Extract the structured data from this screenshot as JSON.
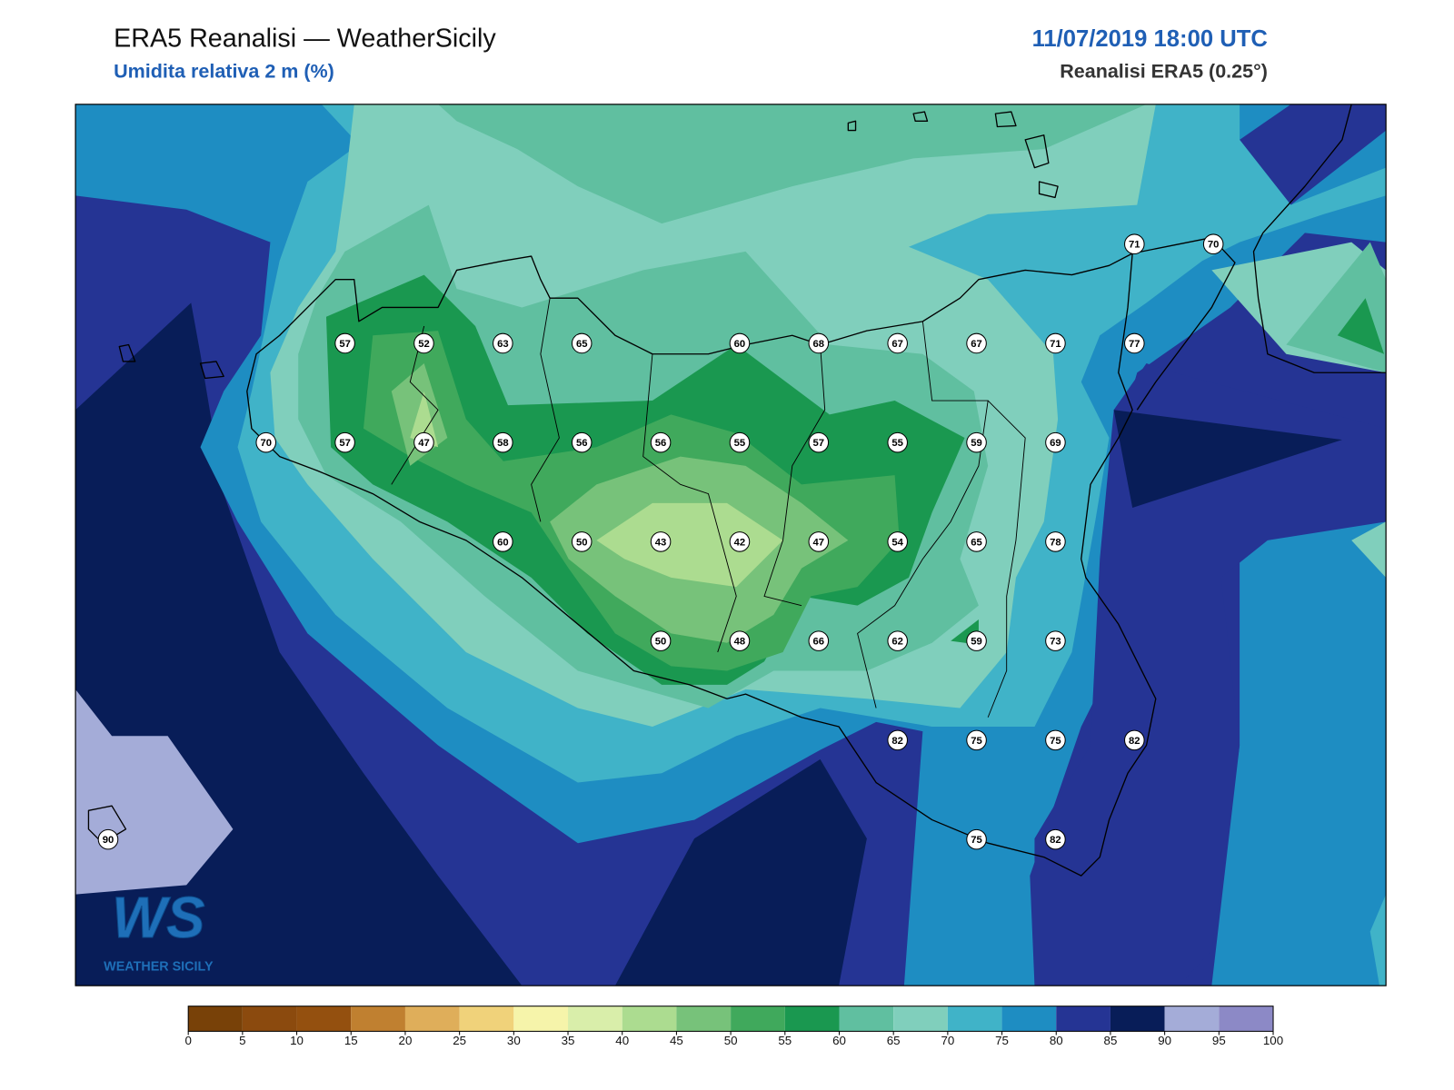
{
  "header": {
    "title": "ERA5 Reanalisi — WeatherSicily",
    "subtitle": "Umidita relativa 2 m (%)",
    "datetime": "11/07/2019 18:00 UTC",
    "source": "Reanalisi ERA5 (0.25°)"
  },
  "logo": {
    "mark": "WS",
    "name": "WEATHER SICILY"
  },
  "grid": [
    [
      null,
      null,
      null,
      null,
      null,
      null,
      null,
      null,
      null,
      null,
      null,
      null,
      null,
      71,
      70
    ],
    [
      null,
      null,
      null,
      57,
      52,
      63,
      65,
      null,
      60,
      68,
      67,
      67,
      71,
      77,
      null
    ],
    [
      null,
      null,
      70,
      57,
      47,
      58,
      56,
      56,
      55,
      57,
      55,
      59,
      69,
      null,
      null
    ],
    [
      null,
      null,
      null,
      null,
      null,
      60,
      50,
      43,
      42,
      47,
      54,
      65,
      78,
      null,
      null
    ],
    [
      null,
      null,
      null,
      null,
      null,
      null,
      null,
      50,
      48,
      66,
      62,
      59,
      73,
      null,
      null
    ],
    [
      null,
      null,
      null,
      null,
      null,
      null,
      null,
      null,
      null,
      null,
      82,
      75,
      75,
      82,
      null
    ],
    [
      90,
      null,
      null,
      null,
      null,
      null,
      null,
      null,
      null,
      null,
      null,
      75,
      82,
      null,
      null
    ]
  ],
  "colorbar": {
    "ticks": [
      0,
      5,
      10,
      15,
      20,
      25,
      30,
      35,
      40,
      45,
      50,
      55,
      60,
      65,
      70,
      75,
      80,
      85,
      90,
      95,
      100
    ],
    "colors": [
      "#784108",
      "#8b4a0e",
      "#94500f",
      "#c08030",
      "#dfae5a",
      "#f0d27a",
      "#f6f4aa",
      "#d9eeaa",
      "#acdc90",
      "#77c27a",
      "#40a95c",
      "#1a9850",
      "#60bfa0",
      "#80cfbc",
      "#40b3c8",
      "#1e8dc2",
      "#253494",
      "#081d58",
      "#a4acd8",
      "#8c89c6"
    ]
  }
}
